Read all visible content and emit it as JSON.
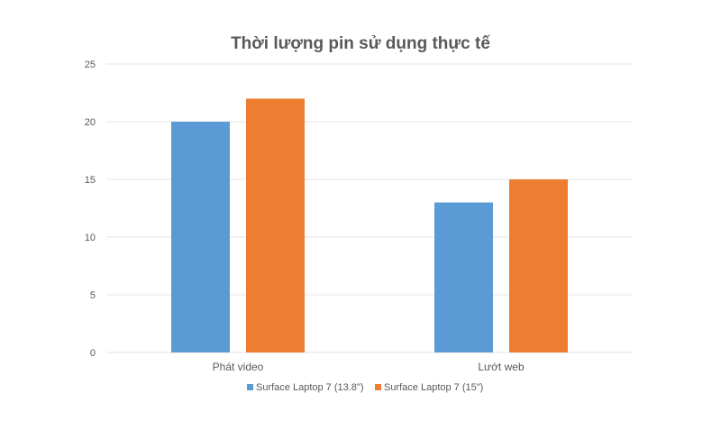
{
  "colors": {
    "series1": "#5b9bd5",
    "series2": "#ed7d31",
    "grid": "#e6e6e6",
    "text": "#595959"
  },
  "chart_data": {
    "type": "bar",
    "title": "Thời lượng pin sử dụng thực tế",
    "xlabel": "",
    "ylabel": "",
    "categories": [
      "Phát video",
      "Lướt web"
    ],
    "series": [
      {
        "name": "Surface Laptop 7 (13.8\")",
        "values": [
          20,
          13
        ]
      },
      {
        "name": "Surface Laptop 7 (15\")",
        "values": [
          22,
          15
        ]
      }
    ],
    "ylim": [
      0,
      25
    ],
    "yticks": [
      "0",
      "5",
      "10",
      "15",
      "20",
      "25"
    ],
    "grid": true,
    "legend_position": "bottom"
  }
}
